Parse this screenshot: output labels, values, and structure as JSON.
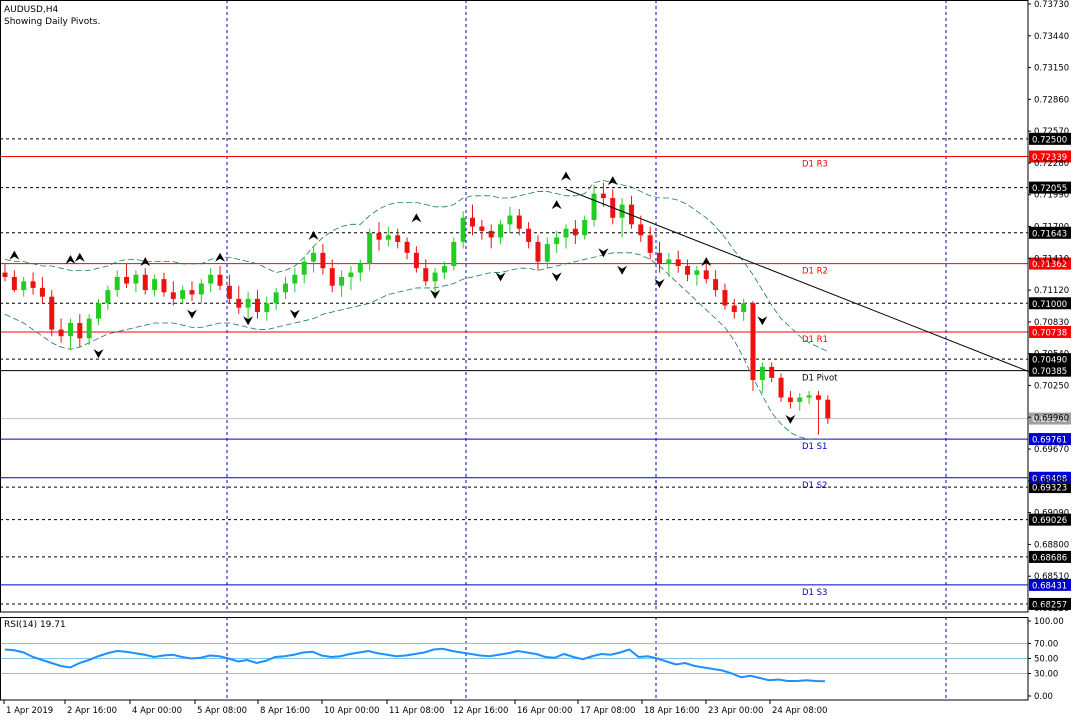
{
  "header": {
    "symbol_timeframe": "AUDUSD,H4",
    "subtitle": "Showing Daily Pivots."
  },
  "rsi": {
    "label": "RSI(14) 19.71"
  },
  "colors": {
    "bull": "#22cc22",
    "bear": "#ee1111",
    "pivot_resist": "#ff0000",
    "pivot_support": "#0000cc",
    "level_tag_red": "#ff0000",
    "level_tag_blue": "#0000cc",
    "rsi_line": "#1e90ff",
    "grid_v": "#0000cc"
  },
  "chart_data": {
    "type": "candlestick",
    "title": "AUDUSD,H4",
    "x_labels": [
      "1 Apr 2019",
      "2 Apr 16:00",
      "4 Apr 00:00",
      "5 Apr 08:00",
      "8 Apr 16:00",
      "10 Apr 00:00",
      "11 Apr 08:00",
      "12 Apr 16:00",
      "16 Apr 00:00",
      "17 Apr 08:00",
      "18 Apr 16:00",
      "23 Apr 00:00",
      "24 Apr 08:00"
    ],
    "price_scale": [
      "0.73730",
      "0.73440",
      "0.73150",
      "0.72860",
      "0.72570",
      "0.72280",
      "0.71990",
      "0.71700",
      "0.71410",
      "0.71120",
      "0.70830",
      "0.70540",
      "0.70250",
      "0.69960",
      "0.69670",
      "0.69380",
      "0.69090",
      "0.68800",
      "0.68510",
      "0.68220"
    ],
    "ylim": [
      0.6822,
      0.7373
    ],
    "dashed_levels": [
      {
        "value": 0.725,
        "tag": "0.72500"
      },
      {
        "value": 0.72055,
        "tag": "0.72055"
      },
      {
        "value": 0.71643,
        "tag": "0.71643"
      },
      {
        "value": 0.71,
        "tag": "0.71000"
      },
      {
        "value": 0.7049,
        "tag": "0.70490"
      },
      {
        "value": 0.69323,
        "tag": "0.69323"
      },
      {
        "value": 0.69026,
        "tag": "0.69026"
      },
      {
        "value": 0.68686,
        "tag": "0.68686"
      },
      {
        "value": 0.68257,
        "tag": "0.68257"
      }
    ],
    "pivots": [
      {
        "name": "D1 R3",
        "value": 0.72339,
        "tag": "0.72339",
        "kind": "resist"
      },
      {
        "name": "D1 R2",
        "value": 0.71362,
        "tag": "0.71362",
        "kind": "resist"
      },
      {
        "name": "D1 R1",
        "value": 0.70738,
        "tag": "0.70738",
        "kind": "resist"
      },
      {
        "name": "D1 Pivot",
        "value": 0.70385,
        "tag": "0.70385",
        "kind": "pivot"
      },
      {
        "name": "D1 S1",
        "value": 0.69761,
        "tag": "0.69761",
        "kind": "support"
      },
      {
        "name": "D1 S2",
        "value": 0.69408,
        "tag": "0.69408",
        "kind": "support"
      },
      {
        "name": "D1 S3",
        "value": 0.68431,
        "tag": "0.68431",
        "kind": "support"
      }
    ],
    "current_price": {
      "value": 0.69948,
      "tag": "0.69948"
    },
    "rsi_scale": [
      "100.00",
      "70.00",
      "50.00",
      "30.00",
      "0.00"
    ],
    "rsi_levels": [
      70,
      50,
      30
    ],
    "rsi_values": [
      62,
      61,
      58,
      52,
      48,
      44,
      40,
      38,
      44,
      48,
      53,
      57,
      60,
      59,
      57,
      55,
      52,
      54,
      55,
      52,
      50,
      51,
      54,
      53,
      50,
      46,
      48,
      44,
      47,
      52,
      53,
      55,
      58,
      59,
      54,
      52,
      53,
      56,
      58,
      60,
      57,
      55,
      53,
      54,
      56,
      58,
      62,
      63,
      60,
      58,
      56,
      54,
      53,
      55,
      57,
      60,
      58,
      56,
      52,
      51,
      56,
      52,
      49,
      53,
      56,
      55,
      58,
      62,
      52,
      53,
      50,
      46,
      42,
      44,
      40,
      38,
      36,
      34,
      30,
      25,
      27,
      24,
      21,
      22,
      20,
      20,
      21,
      20,
      19.71
    ],
    "ohlc": [
      [
        0.7128,
        0.7136,
        0.712,
        0.7124
      ],
      [
        0.7124,
        0.713,
        0.711,
        0.7112
      ],
      [
        0.7112,
        0.7124,
        0.7106,
        0.712
      ],
      [
        0.712,
        0.7128,
        0.7108,
        0.7114
      ],
      [
        0.7114,
        0.7124,
        0.71,
        0.7106
      ],
      [
        0.7106,
        0.7112,
        0.707,
        0.7076
      ],
      [
        0.7076,
        0.7086,
        0.7064,
        0.707
      ],
      [
        0.707,
        0.7086,
        0.7058,
        0.7082
      ],
      [
        0.7082,
        0.709,
        0.706,
        0.7068
      ],
      [
        0.7068,
        0.709,
        0.7062,
        0.7086
      ],
      [
        0.7086,
        0.7104,
        0.708,
        0.71
      ],
      [
        0.71,
        0.7116,
        0.7094,
        0.7112
      ],
      [
        0.7112,
        0.713,
        0.7106,
        0.7124
      ],
      [
        0.7124,
        0.7136,
        0.7114,
        0.7118
      ],
      [
        0.7118,
        0.713,
        0.711,
        0.7126
      ],
      [
        0.7126,
        0.7132,
        0.7108,
        0.7112
      ],
      [
        0.7112,
        0.7126,
        0.7106,
        0.7122
      ],
      [
        0.7122,
        0.7128,
        0.7106,
        0.711
      ],
      [
        0.711,
        0.712,
        0.7098,
        0.7104
      ],
      [
        0.7104,
        0.7116,
        0.71,
        0.7112
      ],
      [
        0.7112,
        0.712,
        0.7102,
        0.7108
      ],
      [
        0.7108,
        0.7122,
        0.71,
        0.7118
      ],
      [
        0.7118,
        0.7132,
        0.711,
        0.7126
      ],
      [
        0.7126,
        0.7134,
        0.7112,
        0.7116
      ],
      [
        0.7116,
        0.7126,
        0.71,
        0.7104
      ],
      [
        0.7104,
        0.7116,
        0.709,
        0.7096
      ],
      [
        0.7096,
        0.711,
        0.7082,
        0.7104
      ],
      [
        0.7104,
        0.7112,
        0.7086,
        0.7092
      ],
      [
        0.7092,
        0.7106,
        0.7084,
        0.71
      ],
      [
        0.71,
        0.7114,
        0.7094,
        0.711
      ],
      [
        0.711,
        0.7124,
        0.7104,
        0.7118
      ],
      [
        0.7118,
        0.7132,
        0.711,
        0.7126
      ],
      [
        0.7126,
        0.7142,
        0.7118,
        0.7138
      ],
      [
        0.7138,
        0.7152,
        0.7128,
        0.7146
      ],
      [
        0.7146,
        0.7154,
        0.7126,
        0.7132
      ],
      [
        0.7132,
        0.714,
        0.711,
        0.7116
      ],
      [
        0.7116,
        0.713,
        0.7106,
        0.7124
      ],
      [
        0.7124,
        0.7134,
        0.7112,
        0.7128
      ],
      [
        0.7128,
        0.714,
        0.712,
        0.7136
      ],
      [
        0.7136,
        0.7168,
        0.713,
        0.7164
      ],
      [
        0.7164,
        0.7174,
        0.7148,
        0.7158
      ],
      [
        0.7158,
        0.717,
        0.7152,
        0.7162
      ],
      [
        0.7162,
        0.7168,
        0.715,
        0.7156
      ],
      [
        0.7156,
        0.716,
        0.714,
        0.7146
      ],
      [
        0.7146,
        0.7152,
        0.7128,
        0.7132
      ],
      [
        0.7132,
        0.714,
        0.7116,
        0.712
      ],
      [
        0.712,
        0.7132,
        0.711,
        0.7128
      ],
      [
        0.7128,
        0.7138,
        0.7122,
        0.7134
      ],
      [
        0.7134,
        0.716,
        0.713,
        0.7156
      ],
      [
        0.7156,
        0.7184,
        0.715,
        0.7178
      ],
      [
        0.7178,
        0.719,
        0.7162,
        0.717
      ],
      [
        0.717,
        0.7176,
        0.7158,
        0.7166
      ],
      [
        0.7166,
        0.7172,
        0.715,
        0.716
      ],
      [
        0.716,
        0.7176,
        0.7154,
        0.7172
      ],
      [
        0.7172,
        0.7188,
        0.7164,
        0.718
      ],
      [
        0.718,
        0.7186,
        0.7162,
        0.7168
      ],
      [
        0.7168,
        0.7174,
        0.715,
        0.7156
      ],
      [
        0.7156,
        0.7162,
        0.713,
        0.7138
      ],
      [
        0.7138,
        0.716,
        0.7132,
        0.7154
      ],
      [
        0.7154,
        0.7166,
        0.7146,
        0.716
      ],
      [
        0.716,
        0.7172,
        0.715,
        0.7168
      ],
      [
        0.7168,
        0.7176,
        0.7154,
        0.7162
      ],
      [
        0.7162,
        0.718,
        0.7158,
        0.7176
      ],
      [
        0.7176,
        0.7208,
        0.717,
        0.72
      ],
      [
        0.72,
        0.721,
        0.7188,
        0.7196
      ],
      [
        0.7196,
        0.7204,
        0.7172,
        0.7178
      ],
      [
        0.7178,
        0.7196,
        0.716,
        0.719
      ],
      [
        0.719,
        0.7198,
        0.7168,
        0.7172
      ],
      [
        0.7172,
        0.718,
        0.7156,
        0.7162
      ],
      [
        0.7162,
        0.717,
        0.714,
        0.7146
      ],
      [
        0.7146,
        0.7156,
        0.7128,
        0.7136
      ],
      [
        0.7136,
        0.7146,
        0.7124,
        0.714
      ],
      [
        0.714,
        0.7148,
        0.7128,
        0.7134
      ],
      [
        0.7134,
        0.714,
        0.712,
        0.7126
      ],
      [
        0.7126,
        0.7134,
        0.7116,
        0.713
      ],
      [
        0.713,
        0.7136,
        0.7118,
        0.7122
      ],
      [
        0.7122,
        0.713,
        0.7106,
        0.7112
      ],
      [
        0.7112,
        0.7118,
        0.7094,
        0.7098
      ],
      [
        0.7098,
        0.7104,
        0.7086,
        0.7092
      ],
      [
        0.7092,
        0.7104,
        0.7084,
        0.71
      ],
      [
        0.71,
        0.7102,
        0.702,
        0.703
      ],
      [
        0.703,
        0.7046,
        0.7018,
        0.7042
      ],
      [
        0.7042,
        0.7046,
        0.7028,
        0.7032
      ],
      [
        0.7032,
        0.7036,
        0.701,
        0.7014
      ],
      [
        0.7014,
        0.702,
        0.7004,
        0.701
      ],
      [
        0.701,
        0.7018,
        0.7002,
        0.7014
      ],
      [
        0.7014,
        0.702,
        0.7008,
        0.7016
      ],
      [
        0.7016,
        0.702,
        0.698,
        0.7012
      ],
      [
        0.7012,
        0.7016,
        0.699,
        0.6995
      ]
    ],
    "upper_band": [
      0.714,
      0.7138,
      0.7138,
      0.7136,
      0.7134,
      0.7134,
      0.7132,
      0.713,
      0.713,
      0.713,
      0.7132,
      0.7134,
      0.7138,
      0.714,
      0.714,
      0.7138,
      0.7138,
      0.7138,
      0.7138,
      0.7136,
      0.7136,
      0.7136,
      0.714,
      0.7142,
      0.7142,
      0.714,
      0.7138,
      0.7136,
      0.7132,
      0.7128,
      0.713,
      0.7134,
      0.7142,
      0.7152,
      0.716,
      0.7166,
      0.717,
      0.7172,
      0.7172,
      0.718,
      0.7186,
      0.719,
      0.7192,
      0.7192,
      0.7192,
      0.719,
      0.7188,
      0.7188,
      0.719,
      0.7196,
      0.7198,
      0.7198,
      0.7198,
      0.7196,
      0.7196,
      0.7198,
      0.72,
      0.7202,
      0.7202,
      0.72,
      0.7198,
      0.7198,
      0.72,
      0.721,
      0.7212,
      0.721,
      0.7208,
      0.7206,
      0.7202,
      0.7198,
      0.7196,
      0.7196,
      0.7194,
      0.719,
      0.7184,
      0.7178,
      0.717,
      0.716,
      0.7148,
      0.7138,
      0.7126,
      0.7112,
      0.7098,
      0.7086,
      0.7078,
      0.707,
      0.7064,
      0.706,
      0.7056
    ],
    "lower_band": [
      0.709,
      0.7086,
      0.7082,
      0.7076,
      0.707,
      0.7064,
      0.706,
      0.7058,
      0.706,
      0.7064,
      0.7068,
      0.7072,
      0.7074,
      0.7076,
      0.7078,
      0.708,
      0.7082,
      0.7082,
      0.7082,
      0.708,
      0.7078,
      0.7078,
      0.708,
      0.7082,
      0.7082,
      0.708,
      0.7078,
      0.7076,
      0.7076,
      0.7078,
      0.708,
      0.7082,
      0.7084,
      0.7086,
      0.709,
      0.7092,
      0.7094,
      0.7096,
      0.7098,
      0.71,
      0.7104,
      0.7108,
      0.711,
      0.7112,
      0.7114,
      0.7114,
      0.7114,
      0.7116,
      0.7118,
      0.7122,
      0.7124,
      0.7126,
      0.7128,
      0.7128,
      0.713,
      0.7132,
      0.7132,
      0.713,
      0.7132,
      0.7134,
      0.7136,
      0.7138,
      0.714,
      0.7142,
      0.7144,
      0.7146,
      0.7146,
      0.7146,
      0.7144,
      0.714,
      0.7134,
      0.7126,
      0.7118,
      0.711,
      0.7102,
      0.7094,
      0.7086,
      0.7078,
      0.7066,
      0.705,
      0.7032,
      0.7016,
      0.7,
      0.699,
      0.6982,
      0.6978,
      0.6976,
      0.6976,
      0.6976
    ],
    "fractals_up": [
      [
        1,
        0.7138
      ],
      [
        7,
        0.7134
      ],
      [
        8,
        0.7136
      ],
      [
        15,
        0.7132
      ],
      [
        23,
        0.7136
      ],
      [
        33,
        0.7156
      ],
      [
        44,
        0.7172
      ],
      [
        59,
        0.7184
      ],
      [
        60,
        0.721
      ],
      [
        65,
        0.7206
      ],
      [
        75,
        0.7132
      ]
    ],
    "fractals_down": [
      [
        10,
        0.706
      ],
      [
        20,
        0.7096
      ],
      [
        26,
        0.709
      ],
      [
        31,
        0.7096
      ],
      [
        46,
        0.7114
      ],
      [
        53,
        0.713
      ],
      [
        59,
        0.713
      ],
      [
        64,
        0.7152
      ],
      [
        66,
        0.7136
      ],
      [
        70,
        0.7124
      ],
      [
        81,
        0.709
      ],
      [
        84,
        0.7
      ]
    ],
    "trendline": {
      "from": [
        60,
        0.7204
      ],
      "to": [
        110,
        0.7036
      ]
    }
  }
}
